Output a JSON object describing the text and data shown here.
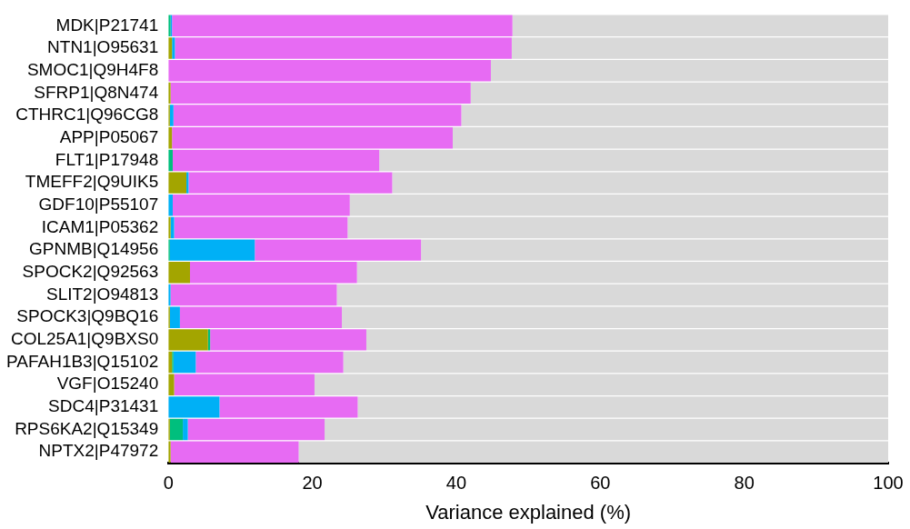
{
  "chart_data": {
    "type": "bar",
    "orientation": "horizontal",
    "stacked": true,
    "xlabel": "Variance explained (%)",
    "categories": [
      "MDK|P21741",
      "NTN1|O95631",
      "SMOC1|Q9H4F8",
      "SFRP1|Q8N474",
      "CTHRC1|Q96CG8",
      "APP|P05067",
      "FLT1|P17948",
      "TMEFF2|Q9UIK5",
      "GDF10|P55107",
      "ICAM1|P05362",
      "GPNMB|Q14956",
      "SPOCK2|Q92563",
      "SLIT2|O94813",
      "SPOCK3|Q9BQ16",
      "COL25A1|Q9BXS0",
      "PAFAH1B3|Q15102",
      "VGF|O15240",
      "SDC4|P31431",
      "RPS6KA2|Q15349",
      "NPTX2|P47972"
    ],
    "series": [
      {
        "color": "#a3a500",
        "values": [
          0,
          0.5,
          0,
          0.3,
          0.2,
          0.5,
          0,
          2.5,
          0,
          0.3,
          0,
          3.0,
          0,
          0.2,
          5.5,
          0.5,
          0.8,
          0,
          0.2,
          0.3
        ]
      },
      {
        "color": "#00bf7d",
        "values": [
          0.3,
          0,
          0,
          0,
          0,
          0,
          0.6,
          0,
          0,
          0,
          0.2,
          0,
          0,
          0,
          0.3,
          0.2,
          0,
          0,
          1.8,
          0
        ]
      },
      {
        "color": "#00b0f6",
        "values": [
          0.2,
          0.4,
          0,
          0,
          0.5,
          0,
          0,
          0.3,
          0.6,
          0.5,
          11.8,
          0,
          0.3,
          1.4,
          0,
          3.1,
          0,
          7.1,
          0.7,
          0
        ]
      },
      {
        "color": "#e76bf3",
        "values": [
          47.3,
          46.8,
          44.8,
          41.7,
          40.0,
          39.0,
          28.7,
          28.3,
          24.6,
          24.1,
          23.1,
          23.2,
          23.1,
          22.5,
          21.7,
          20.5,
          19.5,
          19.2,
          19.0,
          17.8
        ]
      },
      {
        "color": "#d9d9d9",
        "values": [
          52.3,
          52.3,
          55.2,
          58.0,
          59.3,
          60.5,
          70.7,
          68.9,
          74.8,
          75.1,
          64.9,
          73.8,
          76.6,
          76.0,
          72.5,
          75.7,
          79.7,
          73.7,
          78.3,
          81.9
        ]
      }
    ],
    "xlim": [
      0,
      100
    ],
    "xticks": [
      0,
      20,
      40,
      60,
      80,
      100
    ],
    "grid": false,
    "legend": false
  }
}
